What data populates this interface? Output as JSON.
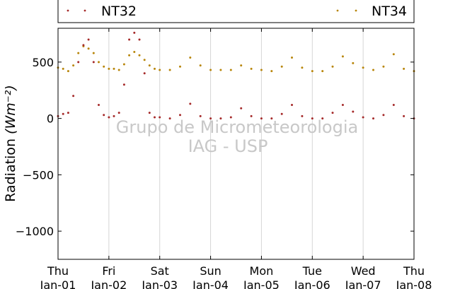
{
  "chart_data": {
    "type": "scatter",
    "ylabel": "Radiation",
    "ylabel_unit": "(Wm⁻²)",
    "ylim": [
      -1250,
      800
    ],
    "xlim": [
      0,
      7
    ],
    "y_ticks": [
      500,
      0,
      -500,
      -1000
    ],
    "y_tick_labels": [
      "500",
      "0",
      "−500",
      "−1000"
    ],
    "x_ticks": [
      {
        "x": 0,
        "day": "Thu",
        "date": "Jan-01"
      },
      {
        "x": 1,
        "day": "Fri",
        "date": "Jan-02"
      },
      {
        "x": 2,
        "day": "Sat",
        "date": "Jan-03"
      },
      {
        "x": 3,
        "day": "Sun",
        "date": "Jan-04"
      },
      {
        "x": 4,
        "day": "Mon",
        "date": "Jan-05"
      },
      {
        "x": 5,
        "day": "Tue",
        "date": "Jan-06"
      },
      {
        "x": 6,
        "day": "Wed",
        "date": "Jan-07"
      },
      {
        "x": 7,
        "day": "Thu",
        "date": "Jan-08"
      }
    ],
    "grid": "vertical",
    "legend": [
      "NT32",
      "NT34"
    ],
    "legend_placement": "top",
    "watermark": [
      "Grupo de Micrometeorologia",
      "IAG - USP"
    ],
    "series": [
      {
        "name": "NT34",
        "color": "#b8860b",
        "x": [
          0,
          0.1,
          0.2,
          0.3,
          0.4,
          0.5,
          0.6,
          0.7,
          0.8,
          0.9,
          1.0,
          1.1,
          1.2,
          1.3,
          1.4,
          1.5,
          1.6,
          1.7,
          1.8,
          1.9,
          2.0,
          2.2,
          2.4,
          2.6,
          2.8,
          3.0,
          3.2,
          3.4,
          3.6,
          3.8,
          4.0,
          4.2,
          4.4,
          4.6,
          4.8,
          5.0,
          5.2,
          5.4,
          5.6,
          5.8,
          6.0,
          6.2,
          6.4,
          6.6,
          6.8,
          7.0
        ],
        "y": [
          450,
          440,
          420,
          470,
          580,
          640,
          620,
          580,
          500,
          460,
          440,
          440,
          430,
          480,
          560,
          590,
          560,
          520,
          470,
          440,
          430,
          430,
          460,
          540,
          470,
          430,
          430,
          430,
          470,
          440,
          430,
          420,
          460,
          540,
          450,
          420,
          420,
          460,
          550,
          490,
          450,
          430,
          460,
          570,
          440,
          420
        ]
      },
      {
        "name": "NT32",
        "color": "#a52a2a",
        "x": [
          0,
          0.1,
          0.2,
          0.3,
          0.4,
          0.5,
          0.6,
          0.7,
          0.8,
          0.9,
          1.0,
          1.1,
          1.2,
          1.3,
          1.4,
          1.5,
          1.6,
          1.7,
          1.8,
          1.9,
          2.0,
          2.2,
          2.4,
          2.6,
          2.8,
          3.0,
          3.2,
          3.4,
          3.6,
          3.8,
          4.0,
          4.2,
          4.4,
          4.6,
          4.8,
          5.0,
          5.2,
          5.4,
          5.6,
          5.8,
          6.0,
          6.2,
          6.4,
          6.6,
          6.8,
          7.0
        ],
        "y": [
          20,
          40,
          50,
          200,
          500,
          650,
          700,
          500,
          120,
          30,
          10,
          20,
          50,
          300,
          700,
          760,
          700,
          400,
          50,
          10,
          10,
          0,
          30,
          130,
          20,
          0,
          0,
          10,
          90,
          20,
          0,
          0,
          40,
          120,
          20,
          0,
          0,
          50,
          120,
          60,
          10,
          0,
          30,
          120,
          20,
          0
        ]
      }
    ]
  }
}
